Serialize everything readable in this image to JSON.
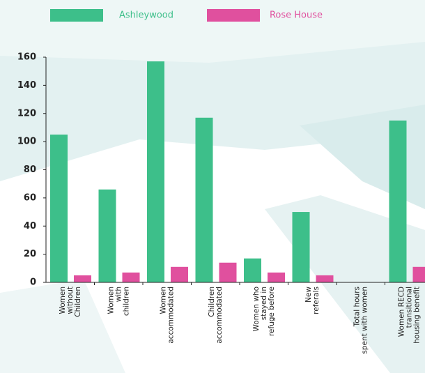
{
  "chart_data": {
    "type": "bar",
    "categories": [
      "Women\nwithout\nChildren",
      "Women\nwith\nchildren",
      "Women\naccommodated",
      "Children\naccommodated",
      "Women who\nstayed in\nrefuge before",
      "New\nreferals",
      "Total hours\nspent with women",
      "Women RECD\ntransitional\nhousing benefit"
    ],
    "series": [
      {
        "name": "Ashleywood",
        "color": "#3dbf8a",
        "values": [
          105,
          66,
          157,
          117,
          17,
          50,
          null,
          115
        ]
      },
      {
        "name": "Rose House",
        "color": "#e0509e",
        "values": [
          5,
          7,
          11,
          14,
          7,
          5,
          null,
          11
        ]
      }
    ],
    "ylim": [
      0,
      160
    ],
    "yticks": [
      0,
      20,
      40,
      60,
      80,
      100,
      120,
      140,
      160
    ],
    "grid": false
  }
}
